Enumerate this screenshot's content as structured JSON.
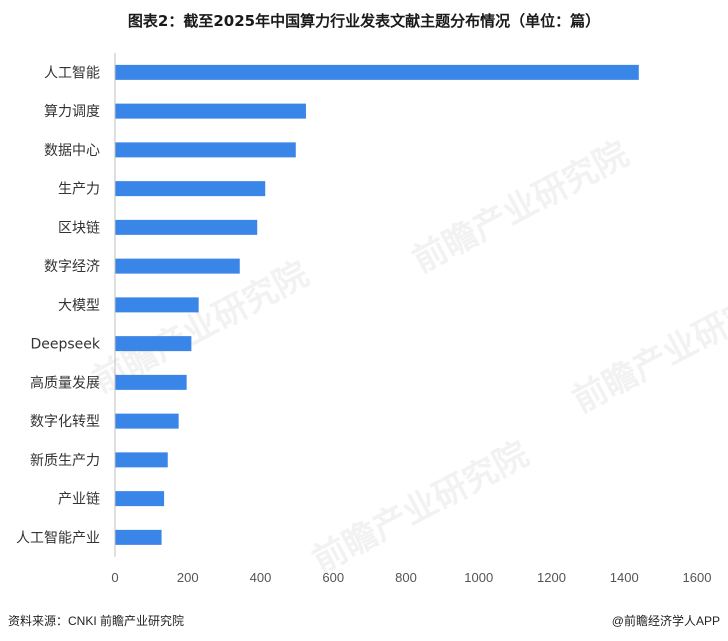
{
  "title": "图表2：截至2025年中国算力行业发表文献主题分布情况（单位：篇）",
  "footer": {
    "source": "资料来源：CNKI 前瞻产业研究院",
    "credit": "@前瞻经济学人APP"
  },
  "watermark": "前瞻产业研究院",
  "colors": {
    "bar": "#3a86e8",
    "axis": "#bfbfbf"
  },
  "chart_data": {
    "type": "bar",
    "orientation": "horizontal",
    "categories": [
      "人工智能",
      "算力调度",
      "数据中心",
      "生产力",
      "区块链",
      "数字经济",
      "大模型",
      "Deepseek",
      "高质量发展",
      "数字化转型",
      "新质生产力",
      "产业链",
      "人工智能产业"
    ],
    "values": [
      1440,
      525,
      497,
      413,
      391,
      343,
      230,
      210,
      197,
      175,
      145,
      135,
      128
    ],
    "xlim": [
      0,
      1600
    ],
    "xticks": [
      0,
      200,
      400,
      600,
      800,
      1000,
      1200,
      1400,
      1600
    ],
    "grid": false,
    "legend": "none"
  }
}
